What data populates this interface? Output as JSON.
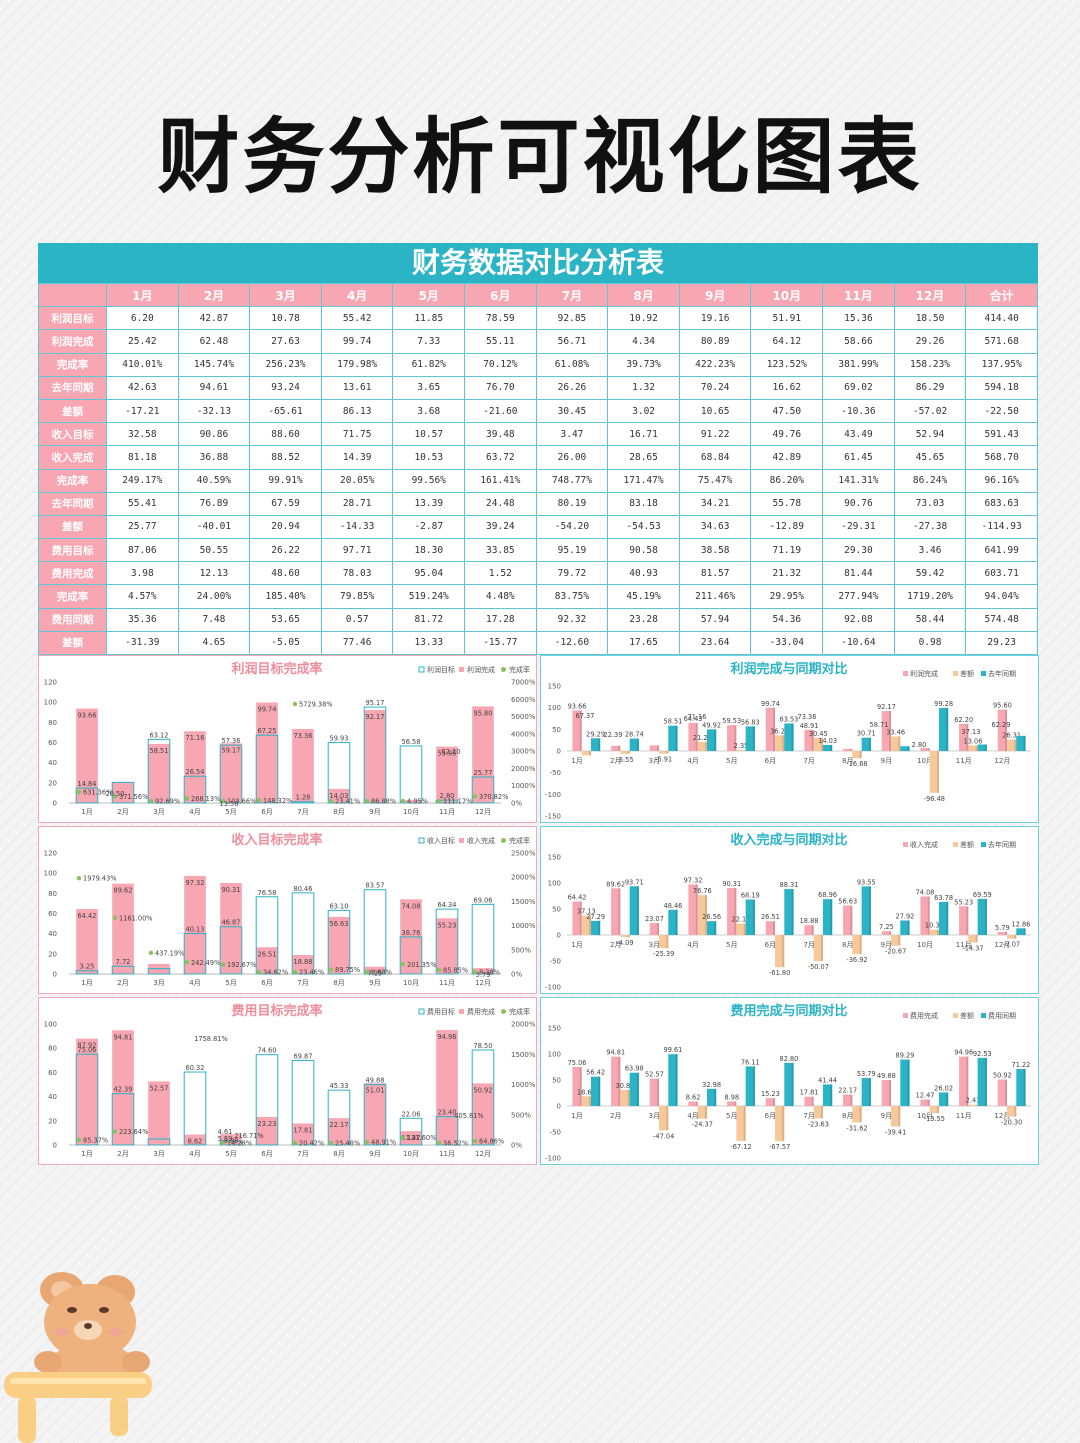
{
  "title": "财务分析可视化图表",
  "sheet": {
    "title": "财务数据对比分析表",
    "columns": [
      "",
      "1月",
      "2月",
      "3月",
      "4月",
      "5月",
      "6月",
      "7月",
      "8月",
      "9月",
      "10月",
      "11月",
      "12月",
      "合计"
    ],
    "rows": [
      {
        "label": "利润目标",
        "values": [
          "6.20",
          "42.87",
          "10.78",
          "55.42",
          "11.85",
          "78.59",
          "92.85",
          "10.92",
          "19.16",
          "51.91",
          "15.36",
          "18.50",
          "414.40"
        ]
      },
      {
        "label": "利润完成",
        "values": [
          "25.42",
          "62.48",
          "27.63",
          "99.74",
          "7.33",
          "55.11",
          "56.71",
          "4.34",
          "80.89",
          "64.12",
          "58.66",
          "29.26",
          "571.68"
        ]
      },
      {
        "label": "完成率",
        "values": [
          "410.01%",
          "145.74%",
          "256.23%",
          "179.98%",
          "61.82%",
          "70.12%",
          "61.08%",
          "39.73%",
          "422.23%",
          "123.52%",
          "381.99%",
          "158.23%",
          "137.95%"
        ]
      },
      {
        "label": "去年同期",
        "values": [
          "42.63",
          "94.61",
          "93.24",
          "13.61",
          "3.65",
          "76.70",
          "26.26",
          "1.32",
          "70.24",
          "16.62",
          "69.02",
          "86.29",
          "594.18"
        ]
      },
      {
        "label": "差额",
        "values": [
          "-17.21",
          "-32.13",
          "-65.61",
          "86.13",
          "3.68",
          "-21.60",
          "30.45",
          "3.02",
          "10.65",
          "47.50",
          "-10.36",
          "-57.02",
          "-22.50"
        ]
      },
      {
        "label": "收入目标",
        "values": [
          "32.58",
          "90.86",
          "88.60",
          "71.75",
          "10.57",
          "39.48",
          "3.47",
          "16.71",
          "91.22",
          "49.76",
          "43.49",
          "52.94",
          "591.43"
        ]
      },
      {
        "label": "收入完成",
        "values": [
          "81.18",
          "36.88",
          "88.52",
          "14.39",
          "10.53",
          "63.72",
          "26.00",
          "28.65",
          "68.84",
          "42.89",
          "61.45",
          "45.65",
          "568.70"
        ]
      },
      {
        "label": "完成率",
        "values": [
          "249.17%",
          "40.59%",
          "99.91%",
          "20.05%",
          "99.56%",
          "161.41%",
          "748.77%",
          "171.47%",
          "75.47%",
          "86.20%",
          "141.31%",
          "86.24%",
          "96.16%"
        ]
      },
      {
        "label": "去年同期",
        "values": [
          "55.41",
          "76.89",
          "67.59",
          "28.71",
          "13.39",
          "24.48",
          "80.19",
          "83.18",
          "34.21",
          "55.78",
          "90.76",
          "73.03",
          "683.63"
        ]
      },
      {
        "label": "差额",
        "values": [
          "25.77",
          "-40.01",
          "20.94",
          "-14.33",
          "-2.87",
          "39.24",
          "-54.20",
          "-54.53",
          "34.63",
          "-12.89",
          "-29.31",
          "-27.38",
          "-114.93"
        ]
      },
      {
        "label": "费用目标",
        "values": [
          "87.06",
          "50.55",
          "26.22",
          "97.71",
          "18.30",
          "33.85",
          "95.19",
          "90.58",
          "38.58",
          "71.19",
          "29.30",
          "3.46",
          "641.99"
        ]
      },
      {
        "label": "费用完成",
        "values": [
          "3.98",
          "12.13",
          "48.60",
          "78.03",
          "95.04",
          "1.52",
          "79.72",
          "40.93",
          "81.57",
          "21.32",
          "81.44",
          "59.42",
          "603.71"
        ]
      },
      {
        "label": "完成率",
        "values": [
          "4.57%",
          "24.00%",
          "185.40%",
          "79.85%",
          "519.24%",
          "4.48%",
          "83.75%",
          "45.19%",
          "211.46%",
          "29.95%",
          "277.94%",
          "1719.20%",
          "94.04%"
        ]
      },
      {
        "label": "费用同期",
        "values": [
          "35.36",
          "7.48",
          "53.65",
          "0.57",
          "81.72",
          "17.28",
          "92.32",
          "23.28",
          "57.94",
          "54.36",
          "92.08",
          "58.44",
          "574.48"
        ]
      },
      {
        "label": "差额",
        "values": [
          "-31.39",
          "4.65",
          "-5.05",
          "77.46",
          "13.33",
          "-15.77",
          "-12.60",
          "17.65",
          "23.64",
          "-33.04",
          "-10.64",
          "0.98",
          "29.23"
        ]
      }
    ]
  },
  "colors": {
    "target_outline": "#2bb3c6",
    "completion_bar": "#f7a6b2",
    "rate_dot": "#8dbf5a",
    "diff_bar": "#f7c99a",
    "lastyear_bar": "#2bb3c6",
    "left_title": "#ee8e9d",
    "right_title": "#2bb3c6"
  },
  "chart_data": [
    {
      "type": "bar",
      "title": "利润目标完成率",
      "categories": [
        "1月",
        "2月",
        "3月",
        "4月",
        "5月",
        "6月",
        "7月",
        "8月",
        "9月",
        "10月",
        "11月",
        "12月"
      ],
      "ylim": [
        0,
        120
      ],
      "y_ticks": [
        "0",
        "20",
        "40",
        "60",
        "80",
        "100",
        "120"
      ],
      "y2lim": [
        0,
        7000
      ],
      "y2_ticks": [
        "0%",
        "1000%",
        "2000%",
        "3000%",
        "4000%",
        "5000%",
        "6000%",
        "7000%"
      ],
      "series": [
        {
          "name": "利润目标",
          "kind": "outline",
          "values": [
            14.84,
            20.5,
            63.12,
            26.54,
            57.36,
            67.25,
            1.28,
            59.93,
            95.17,
            56.58,
            2.8,
            25.77
          ],
          "labels": [
            "14.84",
            "",
            "63.12",
            "26.54",
            "57.36",
            "67.25",
            "1.28",
            "59.93",
            "95.17",
            "56.58",
            "2.80",
            "25.77"
          ]
        },
        {
          "name": "利润完成",
          "kind": "bar",
          "values": [
            93.66,
            20.5,
            58.51,
            71.16,
            59.17,
            99.74,
            73.36,
            14.03,
            92.17,
            2.8,
            55.95,
            95.8
          ],
          "labels": [
            "93.66",
            "",
            "58.51",
            "71.16",
            "59.17",
            "99.74",
            "73.36",
            "14.03",
            "92.17",
            "",
            "55.95",
            "95.80"
          ]
        },
        {
          "name": "完成率",
          "kind": "dot",
          "values": [
            631.36,
            371.56,
            92.69,
            268.13,
            103.66,
            148.32,
            5729.38,
            23.41,
            86.88,
            4.95,
            111.17,
            370.82
          ],
          "labels": [
            "631.36%",
            "371.56%",
            "92.69%",
            "268.13%",
            "103.66%",
            "148.32%",
            "5729.38%",
            "23.41%",
            "86.88%",
            "4.95%",
            "111.17%",
            "370.82%"
          ]
        }
      ],
      "extra_labels": [
        "62.20",
        "13.58",
        "20.50"
      ]
    },
    {
      "type": "bar",
      "title": "收入目标完成率",
      "categories": [
        "1月",
        "2月",
        "3月",
        "4月",
        "5月",
        "6月",
        "7月",
        "8月",
        "9月",
        "10月",
        "11月",
        "12月"
      ],
      "ylim": [
        0,
        120
      ],
      "y_ticks": [
        "0",
        "20",
        "40",
        "60",
        "80",
        "100",
        "120"
      ],
      "y2lim": [
        0,
        2500
      ],
      "y2_ticks": [
        "0%",
        "500%",
        "1000%",
        "1500%",
        "2000%",
        "2500%"
      ],
      "series": [
        {
          "name": "收入目标",
          "kind": "outline",
          "values": [
            3.25,
            7.72,
            5.3,
            40.13,
            46.87,
            76.58,
            80.46,
            63.1,
            83.57,
            36.76,
            64.34,
            69.06
          ],
          "labels": [
            "3.25",
            "7.72",
            "",
            "40.13",
            "46.87",
            "76.58",
            "80.46",
            "63.10",
            "83.57",
            "36.76",
            "64.34",
            "69.06"
          ]
        },
        {
          "name": "收入完成",
          "kind": "bar",
          "values": [
            64.42,
            89.62,
            10,
            97.32,
            90.31,
            26.51,
            18.88,
            56.63,
            7.25,
            74.08,
            55.23,
            5.79
          ],
          "labels": [
            "64.42",
            "89.62",
            "",
            "97.32",
            "90.31",
            "26.51",
            "18.88",
            "56.63",
            "7.25",
            "74.08",
            "55.23",
            "5.79"
          ]
        },
        {
          "name": "完成率",
          "kind": "dot",
          "values": [
            1979.43,
            1161.0,
            437.19,
            242.49,
            192.67,
            34.62,
            23.46,
            89.75,
            8.68,
            201.35,
            85.85,
            8.38
          ],
          "labels": [
            "1979.43%",
            "1161.00%",
            "437.19%",
            "242.49%",
            "192.67%",
            "34.62%",
            "23.46%",
            "89.75%",
            "8.68%",
            "201.35%",
            "85.85%",
            "8.38%"
          ]
        }
      ]
    },
    {
      "type": "bar",
      "title": "费用目标完成率",
      "categories": [
        "1月",
        "2月",
        "3月",
        "4月",
        "5月",
        "6月",
        "7月",
        "8月",
        "9月",
        "10月",
        "11月",
        "12月"
      ],
      "ylim": [
        0,
        100
      ],
      "y_ticks": [
        "0",
        "20",
        "40",
        "60",
        "80",
        "100"
      ],
      "y2lim": [
        0,
        2000
      ],
      "y2_ticks": [
        "0%",
        "500%",
        "1000%",
        "1500%",
        "2000%"
      ],
      "series": [
        {
          "name": "费用目标",
          "kind": "outline",
          "values": [
            75.06,
            42.39,
            5.0,
            60.32,
            3.2,
            74.6,
            69.87,
            45.33,
            49.88,
            22.06,
            23.4,
            78.5
          ],
          "labels": [
            "75.06",
            "42.39",
            "",
            "60.32",
            "",
            "74.60",
            "69.87",
            "45.33",
            "49.88",
            "22.06",
            "23.40",
            "78.50"
          ]
        },
        {
          "name": "费用完成",
          "kind": "bar",
          "values": [
            87.92,
            94.81,
            52.57,
            8.62,
            8.98,
            23.23,
            17.81,
            22.17,
            51.01,
            11.47,
            94.96,
            50.92
          ],
          "labels": [
            "87.92",
            "94.81",
            "52.57",
            "8.62",
            "8.98",
            "23.23",
            "17.81",
            "22.17",
            "51.01",
            "11.47",
            "94.96",
            "50.92"
          ]
        },
        {
          "name": "完成率",
          "kind": "dot",
          "values": [
            85.37,
            223.64,
            0,
            0,
            14.28,
            0,
            20.42,
            25.48,
            48.91,
            121.6,
            36.52,
            64.86
          ],
          "labels": [
            "85.37%",
            "223.64%",
            "",
            "",
            "14.28%",
            "",
            "20.42%",
            "25.48%",
            "48.91%",
            "121.60%",
            "36.52%",
            "64.86%"
          ]
        }
      ],
      "extra_labels": [
        "1758.81%",
        "216.71%",
        "405.81%",
        "4.61",
        "5.59"
      ]
    },
    {
      "type": "bar",
      "title": "利润完成与同期对比",
      "categories": [
        "1月",
        "2月",
        "3月",
        "4月",
        "5月",
        "6月",
        "7月",
        "8月",
        "9月",
        "10月",
        "11月",
        "12月"
      ],
      "ylim": [
        -150,
        150
      ],
      "y_ticks": [
        "-150",
        "-100",
        "-50",
        "0",
        "50",
        "100",
        "150"
      ],
      "series": [
        {
          "name": "利润完成",
          "values": [
            93.66,
            12,
            13,
            64.43,
            59.53,
            99.74,
            48.91,
            5,
            92.17,
            7,
            62.2,
            95.6
          ],
          "labels": [
            "93.66",
            "",
            "",
            "64.43",
            "59.53",
            "99.74",
            "48.91",
            "",
            "92.17",
            "",
            "62.20",
            "95.60"
          ]
        },
        {
          "name": "差额",
          "values": [
            -10,
            -6.55,
            -5.91,
            21.24,
            2.35,
            36.25,
            30.45,
            -16.68,
            33.46,
            -96.48,
            13.06,
            26.31
          ],
          "labels": [
            "",
            "-6.55",
            "-5.91",
            "21.24",
            "2.35",
            "36.25",
            "30.45",
            "-16.68",
            "33.46",
            "-96.48",
            "13.06",
            "26.31"
          ]
        },
        {
          "name": "去年同期",
          "values": [
            29.29,
            28.74,
            58.51,
            49.92,
            56.83,
            63.53,
            14.03,
            30.71,
            11.0,
            99.28,
            15.0,
            35.0
          ],
          "labels": [
            "29.29",
            "28.74",
            "58.51",
            "49.92",
            "56.83",
            "63.53",
            "14.03",
            "30.71",
            "",
            "99.28",
            "",
            ""
          ]
        }
      ],
      "extra_labels": [
        "67.37",
        "22.39",
        "71.16",
        "73.36",
        "58.71",
        "2.80",
        "37.13",
        "62.29"
      ]
    },
    {
      "type": "bar",
      "title": "收入完成与同期对比",
      "categories": [
        "1月",
        "2月",
        "3月",
        "4月",
        "5月",
        "6月",
        "7月",
        "8月",
        "9月",
        "10月",
        "11月",
        "12月"
      ],
      "ylim": [
        -100,
        150
      ],
      "y_ticks": [
        "-100",
        "-50",
        "0",
        "50",
        "100",
        "150"
      ],
      "series": [
        {
          "name": "收入完成",
          "values": [
            64.42,
            89.62,
            23.07,
            97.32,
            90.31,
            26.51,
            18.88,
            56.63,
            7.25,
            74.08,
            55.23,
            5.79
          ],
          "labels": [
            "64.42",
            "89.62",
            "23.07",
            "97.32",
            "90.31",
            "26.51",
            "18.88",
            "56.63",
            "7.25",
            "74.08",
            "55.23",
            "5.79"
          ]
        },
        {
          "name": "差额",
          "values": [
            37.13,
            -4.09,
            -25.39,
            76.76,
            22.12,
            -61.8,
            -50.07,
            -36.92,
            -20.67,
            10.3,
            -14.37,
            -7.07
          ],
          "labels": [
            "37.13",
            "-4.09",
            "-25.39",
            "76.76",
            "22.12",
            "-61.80",
            "-50.07",
            "-36.92",
            "-20.67",
            "10.30",
            "-14.37",
            "-7.07"
          ]
        },
        {
          "name": "去年同期",
          "values": [
            27.29,
            93.71,
            48.46,
            26.56,
            68.19,
            88.31,
            68.96,
            93.55,
            27.92,
            63.78,
            69.59,
            12.86
          ],
          "labels": [
            "27.29",
            "93.71",
            "48.46",
            "26.56",
            "68.19",
            "88.31",
            "68.96",
            "93.55",
            "27.92",
            "63.78",
            "69.59",
            "12.86"
          ]
        }
      ]
    },
    {
      "type": "bar",
      "title": "费用完成与同期对比",
      "categories": [
        "1月",
        "2月",
        "3月",
        "4月",
        "5月",
        "6月",
        "7月",
        "8月",
        "9月",
        "10月",
        "11月",
        "12月"
      ],
      "ylim": [
        -100,
        150
      ],
      "y_ticks": [
        "-100",
        "-50",
        "0",
        "50",
        "100",
        "150"
      ],
      "series": [
        {
          "name": "费用完成",
          "values": [
            75.06,
            94.81,
            52.57,
            8.62,
            8.98,
            15.23,
            17.81,
            22.17,
            49.88,
            12.47,
            94.96,
            50.92
          ],
          "labels": [
            "75.06",
            "94.81",
            "52.57",
            "8.62",
            "8.98",
            "15.23",
            "17.81",
            "22.17",
            "49.88",
            "12.47",
            "94.96",
            "50.92"
          ]
        },
        {
          "name": "差额",
          "values": [
            18.64,
            30.88,
            -47.04,
            -24.37,
            -67.12,
            -67.57,
            -23.63,
            -31.62,
            -39.41,
            -13.55,
            2.43,
            -20.3
          ],
          "labels": [
            "18.64",
            "30.88",
            "-47.04",
            "-24.37",
            "-67.12",
            "-67.57",
            "-23.63",
            "-31.62",
            "-39.41",
            "-13.55",
            "2.43",
            "-20.30"
          ]
        },
        {
          "name": "费用同期",
          "values": [
            56.42,
            63.98,
            99.61,
            32.98,
            76.11,
            82.8,
            41.44,
            53.79,
            89.29,
            26.02,
            92.53,
            71.22
          ],
          "labels": [
            "56.42",
            "63.98",
            "99.61",
            "32.98",
            "76.11",
            "82.80",
            "41.44",
            "53.79",
            "89.29",
            "26.02",
            "92.53",
            "71.22"
          ]
        }
      ]
    }
  ]
}
